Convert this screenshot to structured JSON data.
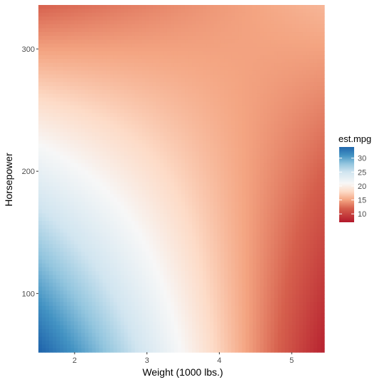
{
  "chart_data": {
    "type": "heatmap",
    "title": "",
    "xlabel": "Weight (1000 lbs.)",
    "ylabel": "Horsepower",
    "xlim": [
      1.5,
      5.45
    ],
    "ylim": [
      52,
      336
    ],
    "x_ticks": [
      {
        "value": 2,
        "label": "2"
      },
      {
        "value": 3,
        "label": "3"
      },
      {
        "value": 4,
        "label": "4"
      },
      {
        "value": 5,
        "label": "5"
      }
    ],
    "y_ticks": [
      {
        "value": 100,
        "label": "100"
      },
      {
        "value": 200,
        "label": "200"
      },
      {
        "value": 300,
        "label": "300"
      }
    ],
    "fill_variable": "est.mpg",
    "fill_range": [
      7,
      34
    ],
    "legend": {
      "title": "est.mpg",
      "position": "right",
      "breaks": [
        {
          "value": 30,
          "label": "30"
        },
        {
          "value": 25,
          "label": "25"
        },
        {
          "value": 20,
          "label": "20"
        },
        {
          "value": 15,
          "label": "15"
        },
        {
          "value": 10,
          "label": "10"
        }
      ]
    },
    "colorscale": {
      "low": "#b2182b",
      "mid_low": "#ef8a62",
      "mid": "#f7f7f7",
      "mid_high": "#67a9cf",
      "high": "#2166ac",
      "stops": [
        {
          "value": 7,
          "color": "#b2182b"
        },
        {
          "value": 12,
          "color": "#d6604d"
        },
        {
          "value": 15,
          "color": "#f4a582"
        },
        {
          "value": 18,
          "color": "#fddbc7"
        },
        {
          "value": 21,
          "color": "#f7f7f7"
        },
        {
          "value": 25,
          "color": "#d1e5f0"
        },
        {
          "value": 28,
          "color": "#92c5de"
        },
        {
          "value": 31,
          "color": "#4393c3"
        },
        {
          "value": 34,
          "color": "#2166ac"
        }
      ]
    },
    "surface_samples": [
      {
        "x": 1.5,
        "y": 52,
        "z": 34
      },
      {
        "x": 2.0,
        "y": 100,
        "z": 29
      },
      {
        "x": 3.0,
        "y": 52,
        "z": 24
      },
      {
        "x": 3.5,
        "y": 52,
        "z": 21
      },
      {
        "x": 2.0,
        "y": 200,
        "z": 21
      },
      {
        "x": 1.5,
        "y": 230,
        "z": 20
      },
      {
        "x": 3.0,
        "y": 200,
        "z": 18
      },
      {
        "x": 5.4,
        "y": 52,
        "z": 8
      },
      {
        "x": 5.0,
        "y": 300,
        "z": 15
      },
      {
        "x": 1.6,
        "y": 330,
        "z": 13
      },
      {
        "x": 4.0,
        "y": 200,
        "z": 16
      }
    ]
  }
}
